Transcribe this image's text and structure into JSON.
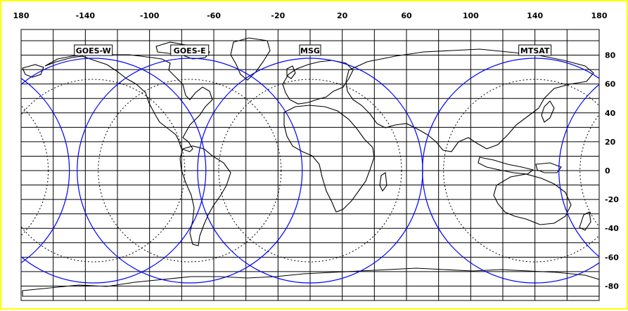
{
  "map": {
    "longitude_ticks": [
      "180",
      "-140",
      "-100",
      "-60",
      "-20",
      "20",
      "60",
      "100",
      "140",
      "180"
    ],
    "latitude_ticks": [
      "80",
      "60",
      "40",
      "20",
      "0",
      "-20",
      "-40",
      "-60",
      "-80"
    ],
    "longitude_range": [
      -180,
      180
    ],
    "latitude_range": [
      -90,
      90
    ],
    "grid_step_degrees": 20,
    "satellites": [
      {
        "label": "GOES-W",
        "longitude": -135
      },
      {
        "label": "GOES-E",
        "longitude": -75
      },
      {
        "label": "MSG",
        "longitude": 0
      },
      {
        "label": "MTSAT",
        "longitude": 140
      }
    ],
    "colors": {
      "frame_border": "#ffff00",
      "coverage_circle": "#0000ff",
      "grid": "#000000",
      "coastline": "#000000"
    }
  }
}
